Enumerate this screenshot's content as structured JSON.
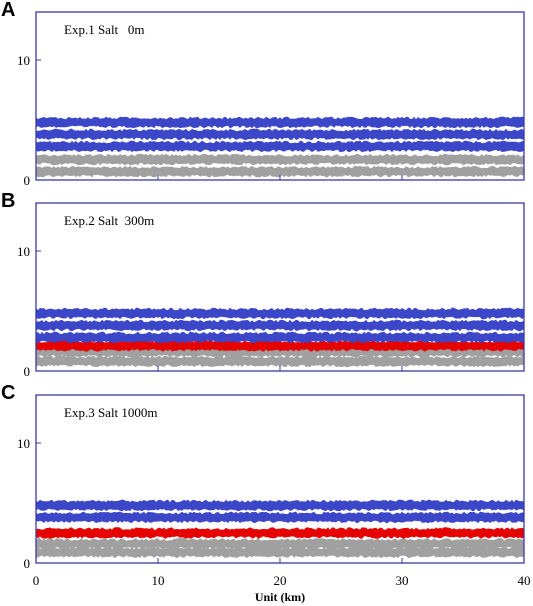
{
  "chart_data": [
    {
      "type": "area",
      "panel_letter": "A",
      "title": "Exp.1 Salt   0m",
      "xlim": [
        0,
        40
      ],
      "ylim": [
        0,
        14
      ],
      "x_ticks": [
        "0",
        "10",
        "20",
        "30",
        "40"
      ],
      "y_ticks": [
        "0",
        "10"
      ],
      "xlabel": "",
      "layers": [
        {
          "color": "#a0a0a0",
          "y": 0.7
        },
        {
          "color": "#a0a0a0",
          "y": 1.7
        },
        {
          "color": "#3b46c8",
          "y": 2.8
        },
        {
          "color": "#3b46c8",
          "y": 3.8
        },
        {
          "color": "#3b46c8",
          "y": 4.8
        }
      ]
    },
    {
      "type": "area",
      "panel_letter": "B",
      "title": "Exp.2 Salt  300m",
      "xlim": [
        0,
        40
      ],
      "ylim": [
        0,
        14
      ],
      "x_ticks": [
        "0",
        "10",
        "20",
        "30",
        "40"
      ],
      "y_ticks": [
        "0",
        "10"
      ],
      "xlabel": "",
      "layers": [
        {
          "color": "#a0a0a0",
          "y": 0.8
        },
        {
          "color": "#a0a0a0",
          "y": 1.6
        },
        {
          "color": "#e60000",
          "y": 2.1
        },
        {
          "color": "#3b46c8",
          "y": 2.8
        },
        {
          "color": "#3b46c8",
          "y": 3.8
        },
        {
          "color": "#3b46c8",
          "y": 4.8
        }
      ]
    },
    {
      "type": "area",
      "panel_letter": "C",
      "title": "Exp.3 Salt 1000m",
      "xlim": [
        0,
        40
      ],
      "ylim": [
        0,
        14
      ],
      "x_ticks": [
        "0",
        "10",
        "20",
        "30",
        "40"
      ],
      "y_ticks": [
        "0",
        "10"
      ],
      "xlabel": "Unit (km)",
      "layers": [
        {
          "color": "#a0a0a0",
          "y": 0.9
        },
        {
          "color": "#a0a0a0",
          "y": 1.6
        },
        {
          "color": "#e60000",
          "y": 2.5
        },
        {
          "color": "#3b46c8",
          "y": 3.8
        },
        {
          "color": "#3b46c8",
          "y": 4.8
        }
      ]
    }
  ],
  "colors": {
    "axis": "#3a3aa8",
    "tick_line": "#000000",
    "background": "#ffffff"
  }
}
